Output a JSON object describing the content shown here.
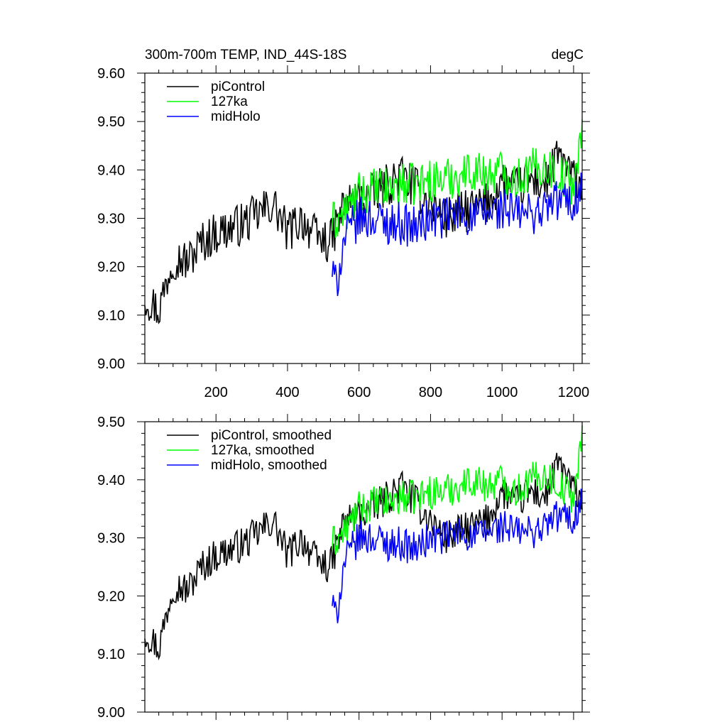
{
  "chart_data": [
    {
      "type": "line",
      "title_left": "300m-700m TEMP, IND_44S-18S",
      "title_right": "degC",
      "xlabel": "",
      "ylabel": "",
      "xlim": [
        1,
        1224
      ],
      "ylim": [
        9.0,
        9.6
      ],
      "xticks": [
        200,
        400,
        600,
        800,
        1000,
        1200
      ],
      "xtick_labels": [
        "200",
        "400",
        "600",
        "800",
        "1000",
        "1200"
      ],
      "yticks": [
        9.0,
        9.1,
        9.2,
        9.3,
        9.4,
        9.5,
        9.6
      ],
      "ytick_labels": [
        "9.00",
        "9.10",
        "9.20",
        "9.30",
        "9.40",
        "9.50",
        "9.60"
      ],
      "legend_position": "top-left",
      "series": [
        {
          "name": "piControl",
          "color": "#000000",
          "x": [
            1,
            40,
            80,
            120,
            160,
            200,
            240,
            280,
            320,
            360,
            400,
            440,
            480,
            520,
            560,
            600,
            640,
            680,
            720,
            760,
            800,
            840,
            880,
            920,
            960,
            1000,
            1040,
            1080,
            1120,
            1160,
            1200,
            1224
          ],
          "y": [
            9.14,
            9.11,
            9.22,
            9.21,
            9.25,
            9.27,
            9.28,
            9.29,
            9.31,
            9.33,
            9.27,
            9.3,
            9.26,
            9.25,
            9.33,
            9.34,
            9.35,
            9.37,
            9.39,
            9.36,
            9.33,
            9.3,
            9.31,
            9.32,
            9.33,
            9.38,
            9.36,
            9.38,
            9.37,
            9.43,
            9.38,
            9.37
          ]
        },
        {
          "name": "127ka",
          "color": "#00ff00",
          "x": [
            525,
            560,
            600,
            640,
            680,
            720,
            760,
            800,
            840,
            880,
            920,
            960,
            1000,
            1040,
            1080,
            1120,
            1160,
            1200,
            1224
          ],
          "y": [
            9.29,
            9.31,
            9.35,
            9.36,
            9.36,
            9.37,
            9.37,
            9.38,
            9.38,
            9.39,
            9.4,
            9.39,
            9.4,
            9.38,
            9.4,
            9.41,
            9.39,
            9.37,
            9.47
          ]
        },
        {
          "name": "midHolo",
          "color": "#0000ff",
          "x": [
            525,
            535,
            560,
            600,
            640,
            680,
            720,
            760,
            800,
            840,
            880,
            920,
            960,
            1000,
            1040,
            1080,
            1120,
            1160,
            1200,
            1224
          ],
          "y": [
            9.19,
            9.16,
            9.26,
            9.3,
            9.3,
            9.29,
            9.29,
            9.28,
            9.3,
            9.3,
            9.31,
            9.3,
            9.31,
            9.32,
            9.31,
            9.31,
            9.32,
            9.34,
            9.33,
            9.37
          ]
        }
      ]
    },
    {
      "type": "line",
      "title_left": "",
      "title_right": "",
      "xlabel": "",
      "ylabel": "",
      "xlim": [
        1,
        1224
      ],
      "ylim": [
        9.0,
        9.5
      ],
      "xticks": [
        200,
        400,
        600,
        800,
        1000,
        1200
      ],
      "yticks": [
        9.0,
        9.1,
        9.2,
        9.3,
        9.4,
        9.5
      ],
      "ytick_labels": [
        "9.00",
        "9.10",
        "9.20",
        "9.30",
        "9.40",
        "9.50"
      ],
      "legend_position": "top-left",
      "series": [
        {
          "name": "piControl, smoothed",
          "color": "#000000",
          "x": [
            1,
            40,
            80,
            120,
            160,
            200,
            240,
            280,
            320,
            360,
            400,
            440,
            480,
            520,
            560,
            600,
            640,
            680,
            720,
            760,
            800,
            840,
            880,
            920,
            960,
            1000,
            1040,
            1080,
            1120,
            1160,
            1200,
            1224
          ],
          "y": [
            9.14,
            9.11,
            9.22,
            9.21,
            9.25,
            9.27,
            9.28,
            9.29,
            9.31,
            9.33,
            9.27,
            9.3,
            9.26,
            9.25,
            9.33,
            9.34,
            9.35,
            9.37,
            9.39,
            9.36,
            9.33,
            9.3,
            9.31,
            9.32,
            9.33,
            9.38,
            9.36,
            9.38,
            9.37,
            9.43,
            9.38,
            9.37
          ]
        },
        {
          "name": "127ka, smoothed",
          "color": "#00ff00",
          "x": [
            525,
            560,
            600,
            640,
            680,
            720,
            760,
            800,
            840,
            880,
            920,
            960,
            1000,
            1040,
            1080,
            1120,
            1160,
            1200,
            1224
          ],
          "y": [
            9.29,
            9.31,
            9.35,
            9.36,
            9.36,
            9.37,
            9.37,
            9.38,
            9.38,
            9.39,
            9.4,
            9.39,
            9.4,
            9.38,
            9.4,
            9.41,
            9.39,
            9.37,
            9.47
          ]
        },
        {
          "name": "midHolo, smoothed",
          "color": "#0000ff",
          "x": [
            525,
            535,
            560,
            600,
            640,
            680,
            720,
            760,
            800,
            840,
            880,
            920,
            960,
            1000,
            1040,
            1080,
            1120,
            1160,
            1200,
            1224
          ],
          "y": [
            9.19,
            9.16,
            9.26,
            9.3,
            9.3,
            9.29,
            9.29,
            9.28,
            9.3,
            9.3,
            9.31,
            9.3,
            9.31,
            9.32,
            9.31,
            9.31,
            9.32,
            9.34,
            9.33,
            9.37
          ]
        }
      ]
    }
  ]
}
